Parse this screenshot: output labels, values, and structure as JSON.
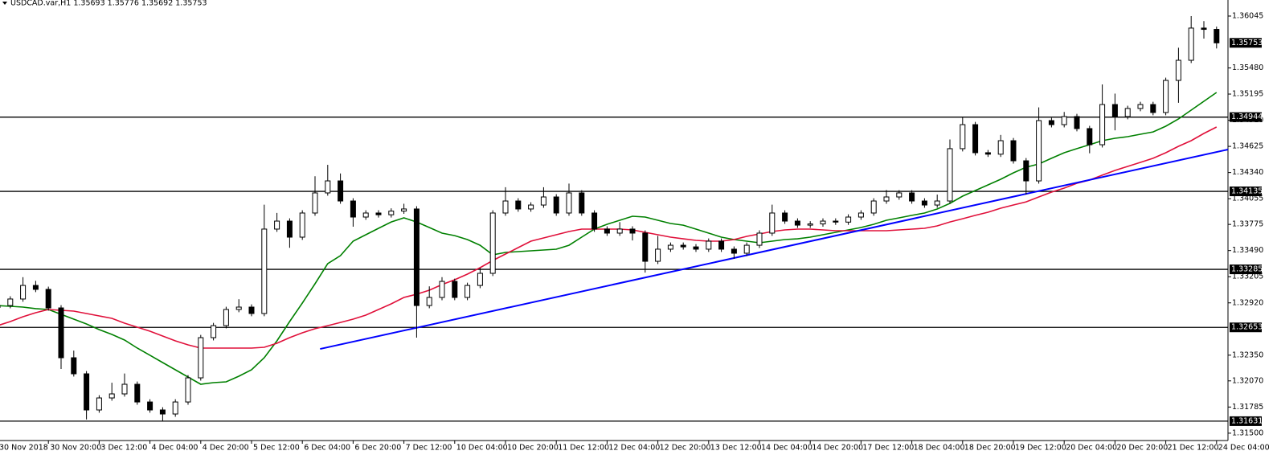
{
  "chart_data": {
    "type": "candlestick",
    "title": "USDCAD.var,H1  1.35693 1.35776 1.35692 1.35753",
    "categories": [
      "30 Nov 2018",
      null,
      null,
      null,
      "30 Nov 20:00",
      null,
      null,
      null,
      "3 Dec 12:00",
      null,
      null,
      null,
      "4 Dec 04:00",
      null,
      null,
      null,
      "4 Dec 20:00",
      null,
      null,
      null,
      "5 Dec 12:00",
      null,
      null,
      null,
      "6 Dec 04:00",
      null,
      null,
      null,
      "6 Dec 20:00",
      null,
      null,
      null,
      "7 Dec 12:00",
      null,
      null,
      null,
      "10 Dec 04:00",
      null,
      null,
      null,
      "10 Dec 20:00",
      null,
      null,
      null,
      "11 Dec 12:00",
      null,
      null,
      null,
      "12 Dec 04:00",
      null,
      null,
      null,
      "12 Dec 20:00",
      null,
      null,
      null,
      "13 Dec 12:00",
      null,
      null,
      null,
      "14 Dec 04:00",
      null,
      null,
      null,
      "14 Dec 20:00",
      null,
      null,
      null,
      "17 Dec 12:00",
      null,
      null,
      null,
      "18 Dec 04:00",
      null,
      null,
      null,
      "18 Dec 20:00",
      null,
      null,
      null,
      "19 Dec 12:00",
      null,
      null,
      null,
      "20 Dec 04:00",
      null,
      null,
      null,
      "20 Dec 20:00",
      null,
      null,
      null,
      "21 Dec 12:00",
      null,
      null,
      null,
      "24 Dec 04:00"
    ],
    "open": [
      1.3287,
      1.32891,
      1.32962,
      1.3311,
      1.33067,
      1.32865,
      1.32322,
      1.32147,
      1.31753,
      1.31884,
      1.31928,
      1.32033,
      1.3184,
      1.31753,
      1.31709,
      1.3184,
      1.32103,
      1.32541,
      1.32672,
      1.32848,
      1.32874,
      1.32804,
      1.33724,
      1.33811,
      1.33636,
      1.33899,
      1.34118,
      1.34249,
      1.3403,
      1.33855,
      1.33899,
      1.3388,
      1.3392,
      1.33943,
      1.32891,
      1.32979,
      1.33154,
      1.32979,
      1.3311,
      1.33242,
      1.33899,
      1.3403,
      1.33943,
      1.33986,
      1.34074,
      1.33899,
      1.34118,
      1.33899,
      1.33724,
      1.3368,
      1.33724,
      1.3368,
      1.33373,
      1.33505,
      1.33548,
      1.3353,
      1.33505,
      1.33592,
      1.33505,
      1.33461,
      1.33548,
      1.3368,
      1.33899,
      1.33811,
      1.33767,
      1.3378,
      1.33811,
      1.338,
      1.33855,
      1.33899,
      1.3403,
      1.34074,
      1.34118,
      1.3403,
      1.33986,
      1.3403,
      1.346,
      1.34862,
      1.34556,
      1.3454,
      1.34687,
      1.34468,
      1.34249,
      1.34906,
      1.34862,
      1.3495,
      1.34819,
      1.34643,
      1.35081,
      1.3495,
      1.35038,
      1.35081,
      1.34994,
      1.35344,
      1.35563,
      1.35914,
      1.359
    ],
    "high": [
      1.32921,
      1.32992,
      1.332,
      1.3316,
      1.33097,
      1.32895,
      1.324,
      1.32177,
      1.31914,
      1.3205,
      1.3215,
      1.32063,
      1.3187,
      1.31783,
      1.3187,
      1.32133,
      1.32571,
      1.32702,
      1.32878,
      1.3296,
      1.32904,
      1.3399,
      1.339,
      1.33841,
      1.33929,
      1.343,
      1.34424,
      1.3433,
      1.3406,
      1.33929,
      1.33929,
      1.3395,
      1.34,
      1.33973,
      1.331,
      1.332,
      1.33184,
      1.3314,
      1.333,
      1.33929,
      1.3418,
      1.3406,
      1.34016,
      1.3418,
      1.34104,
      1.3422,
      1.34148,
      1.33929,
      1.33754,
      1.338,
      1.33754,
      1.3371,
      1.3365,
      1.33578,
      1.33578,
      1.3356,
      1.33622,
      1.33622,
      1.33535,
      1.33578,
      1.3371,
      1.3399,
      1.33929,
      1.33841,
      1.3381,
      1.33841,
      1.33841,
      1.33885,
      1.33929,
      1.3406,
      1.3415,
      1.34148,
      1.34148,
      1.3406,
      1.341,
      1.347,
      1.3495,
      1.34892,
      1.34586,
      1.3475,
      1.34717,
      1.34498,
      1.3505,
      1.34936,
      1.35,
      1.3498,
      1.34849,
      1.353,
      1.352,
      1.35068,
      1.35111,
      1.35111,
      1.35374,
      1.357,
      1.36045,
      1.3599,
      1.3593
    ],
    "low": [
      1.3284,
      1.32861,
      1.32932,
      1.33037,
      1.32835,
      1.322,
      1.32117,
      1.3165,
      1.31723,
      1.31854,
      1.31898,
      1.3181,
      1.31723,
      1.31631,
      1.31679,
      1.3181,
      1.32073,
      1.32511,
      1.32642,
      1.32818,
      1.32774,
      1.32774,
      1.33694,
      1.3352,
      1.33606,
      1.33869,
      1.34088,
      1.34,
      1.3375,
      1.33825,
      1.3385,
      1.3385,
      1.3389,
      1.32541,
      1.32861,
      1.32949,
      1.32949,
      1.32949,
      1.3308,
      1.33212,
      1.33869,
      1.33913,
      1.33913,
      1.33956,
      1.33869,
      1.33869,
      1.33869,
      1.33694,
      1.3365,
      1.3365,
      1.336,
      1.3325,
      1.33343,
      1.33475,
      1.335,
      1.33475,
      1.33475,
      1.33475,
      1.334,
      1.33431,
      1.33518,
      1.3365,
      1.33781,
      1.33737,
      1.33737,
      1.3375,
      1.3377,
      1.3377,
      1.33825,
      1.33869,
      1.34,
      1.34044,
      1.34,
      1.33956,
      1.33956,
      1.34,
      1.3457,
      1.34526,
      1.3451,
      1.3451,
      1.34438,
      1.341,
      1.34219,
      1.34832,
      1.34832,
      1.34789,
      1.3455,
      1.34613,
      1.348,
      1.3492,
      1.35008,
      1.34964,
      1.34964,
      1.351,
      1.35533,
      1.358,
      1.35692
    ],
    "close": [
      1.32891,
      1.32962,
      1.3311,
      1.33067,
      1.32865,
      1.32322,
      1.32147,
      1.31753,
      1.31884,
      1.31928,
      1.32033,
      1.3184,
      1.31753,
      1.31709,
      1.3184,
      1.32103,
      1.32541,
      1.32672,
      1.32848,
      1.32874,
      1.32804,
      1.33724,
      1.33811,
      1.33636,
      1.33899,
      1.34118,
      1.34249,
      1.3403,
      1.33855,
      1.33899,
      1.3388,
      1.3392,
      1.33943,
      1.32891,
      1.32979,
      1.33154,
      1.32979,
      1.3311,
      1.33242,
      1.33899,
      1.3403,
      1.33943,
      1.33986,
      1.34074,
      1.33899,
      1.34118,
      1.33899,
      1.33724,
      1.3368,
      1.33724,
      1.3368,
      1.33373,
      1.33505,
      1.33548,
      1.3353,
      1.33505,
      1.33592,
      1.33505,
      1.33461,
      1.33548,
      1.3368,
      1.33899,
      1.33811,
      1.33767,
      1.3378,
      1.33811,
      1.338,
      1.33855,
      1.33899,
      1.3403,
      1.34074,
      1.34118,
      1.3403,
      1.33986,
      1.3403,
      1.346,
      1.34862,
      1.34556,
      1.3454,
      1.34687,
      1.34468,
      1.34249,
      1.34906,
      1.34862,
      1.3495,
      1.34819,
      1.34643,
      1.35081,
      1.3495,
      1.35038,
      1.35081,
      1.34994,
      1.35344,
      1.35563,
      1.35914,
      1.359,
      1.35753
    ],
    "series": [
      {
        "color": "#008000",
        "values": [
          1.32891,
          1.32883,
          1.32874,
          1.32857,
          1.32848,
          1.32795,
          1.32743,
          1.3269,
          1.32629,
          1.32576,
          1.32515,
          1.32427,
          1.32349,
          1.3227,
          1.32191,
          1.32112,
          1.32033,
          1.32051,
          1.32059,
          1.32121,
          1.32191,
          1.32322,
          1.32506,
          1.32716,
          1.32918,
          1.33128,
          1.33347,
          1.33435,
          1.33592,
          1.33662,
          1.33732,
          1.33802,
          1.33846,
          1.33802,
          1.33741,
          1.3368,
          1.33653,
          1.3361,
          1.33548,
          1.33443,
          1.3347,
          1.33478,
          1.33487,
          1.33496,
          1.33505,
          1.33548,
          1.33636,
          1.33724,
          1.33776,
          1.3382,
          1.33864,
          1.33855,
          1.3382,
          1.33785,
          1.33767,
          1.33724,
          1.3368,
          1.33636,
          1.3361,
          1.33592,
          1.33575,
          1.33592,
          1.3361,
          1.33618,
          1.33636,
          1.33662,
          1.33689,
          1.33715,
          1.33741,
          1.33776,
          1.3382,
          1.33846,
          1.33873,
          1.33899,
          1.33943,
          1.34004,
          1.34083,
          1.34144,
          1.34205,
          1.34267,
          1.34337,
          1.34398,
          1.34433,
          1.34495,
          1.34556,
          1.346,
          1.34643,
          1.34687,
          1.34713,
          1.34731,
          1.34757,
          1.34783,
          1.34845,
          1.34924,
          1.3502,
          1.35116,
          1.35213
        ]
      },
      {
        "color": "#e0103a",
        "values": [
          1.32672,
          1.32716,
          1.32769,
          1.32813,
          1.32848,
          1.32839,
          1.3283,
          1.32804,
          1.32778,
          1.32751,
          1.32699,
          1.32655,
          1.32611,
          1.32559,
          1.32506,
          1.32462,
          1.32427,
          1.32427,
          1.32427,
          1.32427,
          1.32427,
          1.32436,
          1.3248,
          1.32541,
          1.32594,
          1.32638,
          1.32672,
          1.32707,
          1.32743,
          1.32786,
          1.32848,
          1.32909,
          1.32979,
          1.33014,
          1.33058,
          1.33119,
          1.33172,
          1.33233,
          1.33303,
          1.33382,
          1.33452,
          1.33522,
          1.33592,
          1.33627,
          1.33662,
          1.33697,
          1.33724,
          1.33724,
          1.33724,
          1.33724,
          1.33715,
          1.33689,
          1.33662,
          1.33636,
          1.33618,
          1.33601,
          1.33592,
          1.33592,
          1.3361,
          1.33645,
          1.33671,
          1.33697,
          1.33715,
          1.33724,
          1.33724,
          1.33715,
          1.33706,
          1.33706,
          1.33706,
          1.33706,
          1.33706,
          1.33715,
          1.33724,
          1.33732,
          1.33759,
          1.33802,
          1.33837,
          1.33873,
          1.33908,
          1.33951,
          1.33986,
          1.34021,
          1.34074,
          1.34127,
          1.3417,
          1.34223,
          1.34258,
          1.34311,
          1.34363,
          1.34407,
          1.34451,
          1.34495,
          1.34556,
          1.34626,
          1.34687,
          1.34766,
          1.34836
        ]
      }
    ],
    "trendline": {
      "color": "#0000ff",
      "points": [
        {
          "x": 25.4,
          "y": 1.32418
        },
        {
          "x": 96.9,
          "y": 1.34591
        }
      ]
    },
    "hlines": [
      1.34944,
      1.34135,
      1.33285,
      1.32653,
      1.31631
    ],
    "ylim": [
      1.3142,
      1.3622
    ],
    "yticks": [
      1.36045,
      {
        "value": 1.3548,
        "label": "1.35480"
      },
      1.35195,
      {
        "value": 1.3491,
        "label": "1.34910"
      },
      1.34625,
      {
        "value": 1.3434,
        "label": "1.34340"
      },
      1.34055,
      1.33775,
      {
        "value": 1.3349,
        "label": "1.33490"
      },
      1.33205,
      {
        "value": 1.3292,
        "label": "1.32920"
      },
      {
        "value": 1.3235,
        "label": "1.32350"
      },
      {
        "value": 1.3207,
        "label": "1.32070"
      },
      1.31785,
      {
        "value": 1.315,
        "label": "1.31500"
      }
    ]
  }
}
